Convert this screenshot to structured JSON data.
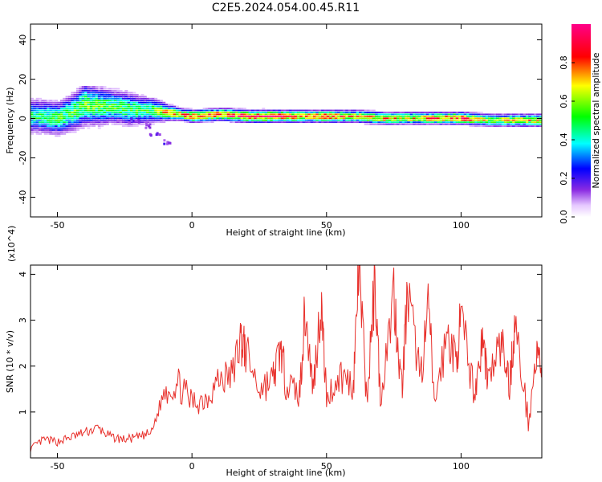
{
  "chart_data": [
    {
      "type": "heatmap",
      "title": "C2E5.2024.054.00.45.R11",
      "xlabel": "Height of straight line (km)",
      "ylabel": "Frequency (Hz)",
      "xlim": [
        -60,
        130
      ],
      "ylim": [
        -50,
        48
      ],
      "xticks": [
        -50,
        0,
        50,
        100
      ],
      "yticks": [
        -40,
        -20,
        0,
        20,
        40
      ],
      "colorbar": {
        "label": "Normalized spectral amplitude",
        "range": [
          0,
          1
        ],
        "ticks": [
          0.0,
          0.2,
          0.4,
          0.6,
          0.8
        ],
        "colormap": [
          "#ffffff",
          "#8a2be2",
          "#0000ff",
          "#00ffff",
          "#00ff00",
          "#ffff00",
          "#ff0000",
          "#ff00aa"
        ]
      },
      "ridge": [
        {
          "x": -58,
          "freq": 1,
          "amp": 0.45,
          "width": 8
        },
        {
          "x": -50,
          "freq": 0,
          "amp": 0.5,
          "width": 8
        },
        {
          "x": -45,
          "freq": 3,
          "amp": 0.5,
          "width": 9
        },
        {
          "x": -40,
          "freq": 7,
          "amp": 0.55,
          "width": 10
        },
        {
          "x": -35,
          "freq": 6,
          "amp": 0.55,
          "width": 9
        },
        {
          "x": -30,
          "freq": 6,
          "amp": 0.5,
          "width": 8
        },
        {
          "x": -25,
          "freq": 5,
          "amp": 0.5,
          "width": 8
        },
        {
          "x": -20,
          "freq": 4,
          "amp": 0.5,
          "width": 7
        },
        {
          "x": -15,
          "freq": 4,
          "amp": 0.5,
          "width": 6
        },
        {
          "x": -10,
          "freq": 3,
          "amp": 0.7,
          "width": 4
        },
        {
          "x": -5,
          "freq": 2,
          "amp": 0.75,
          "width": 3
        },
        {
          "x": 0,
          "freq": 1,
          "amp": 0.8,
          "width": 3
        },
        {
          "x": 10,
          "freq": 2,
          "amp": 0.8,
          "width": 3
        },
        {
          "x": 20,
          "freq": 1,
          "amp": 0.9,
          "width": 3
        },
        {
          "x": 30,
          "freq": 1,
          "amp": 0.9,
          "width": 3
        },
        {
          "x": 40,
          "freq": 1,
          "amp": 0.75,
          "width": 3
        },
        {
          "x": 50,
          "freq": 1,
          "amp": 0.8,
          "width": 3
        },
        {
          "x": 60,
          "freq": 1,
          "amp": 0.7,
          "width": 3
        },
        {
          "x": 70,
          "freq": 0,
          "amp": 0.75,
          "width": 3
        },
        {
          "x": 80,
          "freq": 0,
          "amp": 0.7,
          "width": 3
        },
        {
          "x": 90,
          "freq": 0,
          "amp": 0.75,
          "width": 3
        },
        {
          "x": 100,
          "freq": 0,
          "amp": 0.85,
          "width": 3
        },
        {
          "x": 110,
          "freq": -1,
          "amp": 0.6,
          "width": 3
        },
        {
          "x": 120,
          "freq": -1,
          "amp": 0.7,
          "width": 3
        },
        {
          "x": 130,
          "freq": -1,
          "amp": 0.7,
          "width": 3
        }
      ],
      "branch": [
        {
          "x": -22,
          "freq": 0
        },
        {
          "x": -18,
          "freq": -3
        },
        {
          "x": -14,
          "freq": -7
        },
        {
          "x": -10,
          "freq": -11
        }
      ]
    },
    {
      "type": "line",
      "xlabel": "Height of straight line (km)",
      "ylabel": "SNR (10 * v/v)",
      "yexp": "(x10^4)",
      "xlim": [
        -60,
        130
      ],
      "ylim": [
        0,
        4.2
      ],
      "xticks": [
        -50,
        0,
        50,
        100
      ],
      "yticks": [
        1,
        2,
        3,
        4
      ],
      "color": "#e8312c",
      "series": [
        {
          "x": [
            -60,
            -55,
            -50,
            -45,
            -40,
            -35,
            -30,
            -25,
            -20,
            -15,
            -10,
            -5,
            0,
            5,
            10,
            15,
            18,
            20,
            25,
            30,
            33,
            35,
            40,
            42,
            45,
            48,
            50,
            55,
            60,
            62,
            65,
            68,
            70,
            75,
            78,
            80,
            85,
            88,
            90,
            95,
            98,
            100,
            105,
            108,
            110,
            115,
            118,
            120,
            125,
            128,
            130
          ],
          "values": [
            0.2,
            0.4,
            0.35,
            0.45,
            0.55,
            0.65,
            0.45,
            0.4,
            0.45,
            0.55,
            1.5,
            1.6,
            1.2,
            1.3,
            1.7,
            1.8,
            2.6,
            2.3,
            1.5,
            1.7,
            2.4,
            1.6,
            1.4,
            3.2,
            1.5,
            3.4,
            1.3,
            1.8,
            1.6,
            4.2,
            1.2,
            3.9,
            1.3,
            3.6,
            1.5,
            3.5,
            1.8,
            3.3,
            1.2,
            2.7,
            2.1,
            3.0,
            1.4,
            2.6,
            1.7,
            2.5,
            1.6,
            2.9,
            0.8,
            2.2,
            2.0
          ]
        }
      ]
    }
  ]
}
